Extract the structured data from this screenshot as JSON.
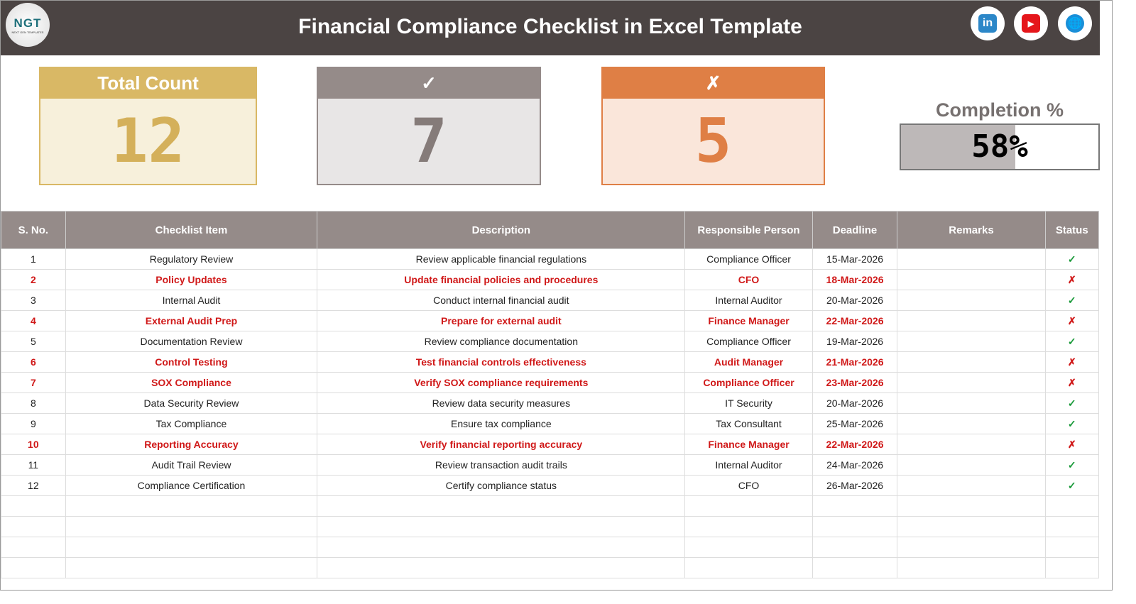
{
  "header": {
    "title": "Financial Compliance Checklist in Excel Template",
    "logo_text": "NGT",
    "logo_sub": "NEXT GEN TEMPLATES",
    "social": [
      "linkedin-icon",
      "youtube-icon",
      "globe-icon"
    ]
  },
  "cards": [
    {
      "label": "Total Count",
      "value": "12",
      "head_color": "#d9b865",
      "body_color": "#f7f0db",
      "text_color": "#d4b05a"
    },
    {
      "label": "✓",
      "value": "7",
      "head_color": "#958b89",
      "body_color": "#e8e6e6",
      "text_color": "#857b79"
    },
    {
      "label": "✗",
      "value": "5",
      "head_color": "#df7f45",
      "body_color": "#fae6da",
      "text_color": "#df7f45"
    }
  ],
  "completion": {
    "label": "Completion %",
    "value": "58%",
    "fraction": 0.58
  },
  "table": {
    "headers": [
      "S. No.",
      "Checklist Item",
      "Description",
      "Responsible Person",
      "Deadline",
      "Remarks",
      "Status"
    ],
    "rows": [
      [
        "1",
        "Regulatory Review",
        "Review applicable financial regulations",
        "Compliance Officer",
        "15-Mar-2026",
        "",
        "✓"
      ],
      [
        "2",
        "Policy Updates",
        "Update financial policies and procedures",
        "CFO",
        "18-Mar-2026",
        "",
        "✗"
      ],
      [
        "3",
        "Internal Audit",
        "Conduct internal financial audit",
        "Internal Auditor",
        "20-Mar-2026",
        "",
        "✓"
      ],
      [
        "4",
        "External Audit Prep",
        "Prepare for external audit",
        "Finance Manager",
        "22-Mar-2026",
        "",
        "✗"
      ],
      [
        "5",
        "Documentation Review",
        "Review compliance documentation",
        "Compliance Officer",
        "19-Mar-2026",
        "",
        "✓"
      ],
      [
        "6",
        "Control Testing",
        "Test financial controls effectiveness",
        "Audit Manager",
        "21-Mar-2026",
        "",
        "✗"
      ],
      [
        "7",
        "SOX Compliance",
        "Verify SOX compliance requirements",
        "Compliance Officer",
        "23-Mar-2026",
        "",
        "✗"
      ],
      [
        "8",
        "Data Security Review",
        "Review data security measures",
        "IT Security",
        "20-Mar-2026",
        "",
        "✓"
      ],
      [
        "9",
        "Tax Compliance",
        "Ensure tax compliance",
        "Tax Consultant",
        "25-Mar-2026",
        "",
        "✓"
      ],
      [
        "10",
        "Reporting Accuracy",
        "Verify financial reporting accuracy",
        "Finance Manager",
        "22-Mar-2026",
        "",
        "✗"
      ],
      [
        "11",
        "Audit Trail Review",
        "Review transaction audit trails",
        "Internal Auditor",
        "24-Mar-2026",
        "",
        "✓"
      ],
      [
        "12",
        "Compliance Certification",
        "Certify compliance status",
        "CFO",
        "26-Mar-2026",
        "",
        "✓"
      ]
    ]
  }
}
